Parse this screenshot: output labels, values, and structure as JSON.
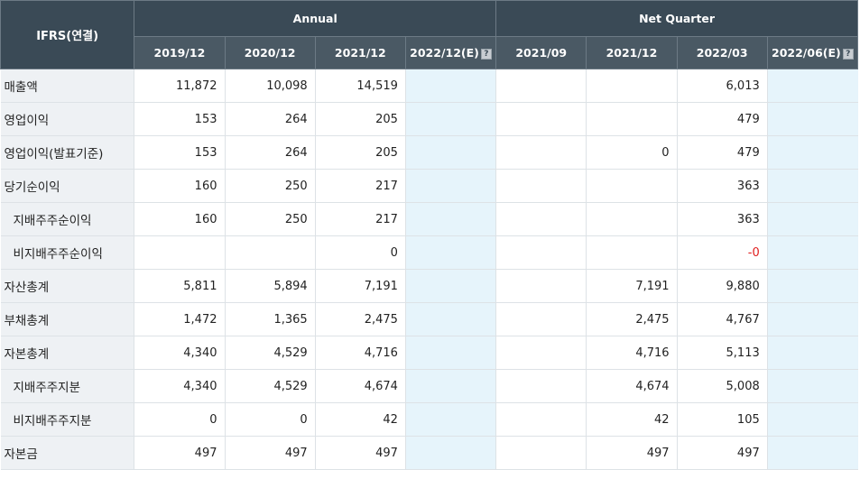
{
  "header": {
    "label": "IFRS(연결)",
    "group_annual": "Annual",
    "group_quarter": "Net Quarter",
    "periods": [
      "2019/12",
      "2020/12",
      "2021/12",
      "2022/12(E)",
      "2021/09",
      "2021/12",
      "2022/03",
      "2022/06(E)"
    ],
    "help_icon": "?"
  },
  "rows": [
    {
      "label": "매출액",
      "values": [
        "11,872",
        "10,098",
        "14,519",
        "",
        "",
        "",
        "6,013",
        ""
      ]
    },
    {
      "label": "영업이익",
      "values": [
        "153",
        "264",
        "205",
        "",
        "",
        "",
        "479",
        ""
      ]
    },
    {
      "label": "영업이익(발표기준)",
      "values": [
        "153",
        "264",
        "205",
        "",
        "",
        "0",
        "479",
        ""
      ]
    },
    {
      "label": "당기순이익",
      "values": [
        "160",
        "250",
        "217",
        "",
        "",
        "",
        "363",
        ""
      ]
    },
    {
      "label": "지배주주순이익",
      "values": [
        "160",
        "250",
        "217",
        "",
        "",
        "",
        "363",
        ""
      ]
    },
    {
      "label": "비지배주주순이익",
      "values": [
        "",
        "",
        "0",
        "",
        "",
        "",
        "-0",
        ""
      ]
    },
    {
      "label": "자산총계",
      "values": [
        "5,811",
        "5,894",
        "7,191",
        "",
        "",
        "7,191",
        "9,880",
        ""
      ]
    },
    {
      "label": "부채총계",
      "values": [
        "1,472",
        "1,365",
        "2,475",
        "",
        "",
        "2,475",
        "4,767",
        ""
      ]
    },
    {
      "label": "자본총계",
      "values": [
        "4,340",
        "4,529",
        "4,716",
        "",
        "",
        "4,716",
        "5,113",
        ""
      ]
    },
    {
      "label": "지배주주지분",
      "values": [
        "4,340",
        "4,529",
        "4,674",
        "",
        "",
        "4,674",
        "5,008",
        ""
      ]
    },
    {
      "label": "비지배주주지분",
      "values": [
        "0",
        "0",
        "42",
        "",
        "",
        "42",
        "105",
        ""
      ]
    },
    {
      "label": "자본금",
      "values": [
        "497",
        "497",
        "497",
        "",
        "",
        "497",
        "497",
        ""
      ]
    }
  ],
  "colors": {
    "header_bg": "#3a4a56",
    "estimate_bg": "#e6f4fb",
    "label_bg": "#eef1f4",
    "negative": "#e02020"
  }
}
